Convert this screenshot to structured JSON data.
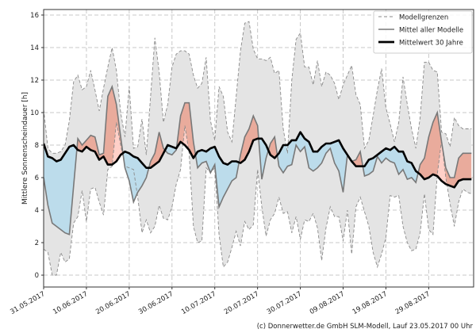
{
  "chart_data": {
    "type": "area",
    "title": "",
    "xlabel": "",
    "ylabel": "Mittlere Sonnenscheindauer [h]",
    "xlim": [
      0,
      100.5
    ],
    "ylim": [
      -0.73,
      16.34
    ],
    "yticks": [
      0,
      2,
      4,
      6,
      8,
      10,
      12,
      14,
      16
    ],
    "xticks": [
      {
        "day": 0,
        "label": "31.05.2017"
      },
      {
        "day": 10,
        "label": "10.06.2017"
      },
      {
        "day": 20,
        "label": "20.06.2017"
      },
      {
        "day": 30,
        "label": "30.06.2017"
      },
      {
        "day": 40,
        "label": "10.07.2017"
      },
      {
        "day": 50,
        "label": "20.07.2017"
      },
      {
        "day": 60,
        "label": "30.07.2017"
      },
      {
        "day": 70,
        "label": "09.08.2017"
      },
      {
        "day": 80,
        "label": "19.08.2017"
      },
      {
        "day": 90,
        "label": "29.08.2017"
      }
    ],
    "grid": true,
    "legend_position": "top-right",
    "legend": [
      "Modellgrenzen",
      "Mittel aller Modelle",
      "Mittelwert 30 Jahre"
    ],
    "series": [
      {
        "name": "Modellgrenzen max",
        "values": [
          10.2,
          7.8,
          7.5,
          7.5,
          7.6,
          8.0,
          9.5,
          11.9,
          12.3,
          11.4,
          11.6,
          12.6,
          11.4,
          10.1,
          11.5,
          12.8,
          14.0,
          12.6,
          10.0,
          8.5,
          11.6,
          7.8,
          7.9,
          9.6,
          7.4,
          11.0,
          14.6,
          12.5,
          9.4,
          10.5,
          12.8,
          13.6,
          13.8,
          13.8,
          13.6,
          12.3,
          11.5,
          11.8,
          13.4,
          9.5,
          8.3,
          11.6,
          11.0,
          8.8,
          8.2,
          11.0,
          13.8,
          15.5,
          15.6,
          13.9,
          13.3,
          13.3,
          13.2,
          13.4,
          12.4,
          12.6,
          9.0,
          7.5,
          12.0,
          14.5,
          14.9,
          12.8,
          12.8,
          11.7,
          13.2,
          11.6,
          12.5,
          12.3,
          11.8,
          10.8,
          11.7,
          12.3,
          12.9,
          11.1,
          10.5,
          7.8,
          8.3,
          9.8,
          11.4,
          12.7,
          10.3,
          9.3,
          8.2,
          9.4,
          12.2,
          10.5,
          9.0,
          7.8,
          9.7,
          13.1,
          13.1,
          12.6,
          12.5,
          8.8,
          8.7,
          7.9,
          9.7,
          9.2,
          9.0,
          9.0,
          9.0
        ]
      },
      {
        "name": "Modellgrenzen min",
        "values": [
          1.6,
          1.4,
          0.0,
          0.0,
          1.4,
          0.8,
          1.0,
          3.2,
          3.6,
          5.2,
          3.3,
          5.3,
          5.4,
          4.5,
          3.7,
          6.5,
          6.7,
          9.4,
          8.0,
          6.7,
          6.6,
          6.5,
          4.8,
          2.6,
          3.4,
          2.6,
          3.0,
          4.3,
          3.5,
          3.4,
          4.2,
          5.6,
          6.5,
          9.2,
          7.5,
          3.0,
          2.0,
          2.1,
          6.6,
          6.3,
          6.6,
          2.5,
          0.5,
          0.8,
          1.7,
          2.7,
          1.8,
          3.3,
          2.8,
          3.1,
          6.5,
          4.2,
          2.4,
          3.4,
          3.8,
          4.8,
          3.8,
          3.9,
          2.6,
          3.6,
          2.2,
          3.4,
          3.3,
          3.8,
          2.9,
          0.9,
          2.9,
          4.2,
          3.6,
          3.6,
          2.1,
          4.0,
          1.3,
          4.2,
          4.8,
          3.9,
          3.0,
          1.4,
          0.5,
          1.3,
          2.3,
          4.9,
          4.8,
          4.9,
          3.0,
          2.0,
          1.5,
          1.6,
          2.6,
          5.0,
          2.8,
          2.5,
          6.2,
          8.3,
          6.0,
          4.4,
          3.0,
          4.5,
          5.3,
          5.1,
          5.0
        ]
      },
      {
        "name": "Mittel aller Modelle",
        "values": [
          6.0,
          4.3,
          3.2,
          3.0,
          2.8,
          2.6,
          2.5,
          5.5,
          8.4,
          8.0,
          8.3,
          8.6,
          8.5,
          7.4,
          7.5,
          11.0,
          11.6,
          10.5,
          8.5,
          6.6,
          5.8,
          4.5,
          5.1,
          5.5,
          6.0,
          7.0,
          7.5,
          8.8,
          7.8,
          7.5,
          7.4,
          7.7,
          9.8,
          10.6,
          10.6,
          8.2,
          6.6,
          6.9,
          7.0,
          6.3,
          6.8,
          4.2,
          4.8,
          5.3,
          5.8,
          6.0,
          7.4,
          8.5,
          9.0,
          9.8,
          9.2,
          5.9,
          7.2,
          8.1,
          8.5,
          6.7,
          6.3,
          6.7,
          6.8,
          8.0,
          7.6,
          7.9,
          6.6,
          6.4,
          6.6,
          6.9,
          7.5,
          7.8,
          6.9,
          6.4,
          5.1,
          7.4,
          7.0,
          7.1,
          7.6,
          6.1,
          6.2,
          6.4,
          7.3,
          6.9,
          7.2,
          7.0,
          6.9,
          6.2,
          6.5,
          5.9,
          6.0,
          5.7,
          6.8,
          7.2,
          8.5,
          9.4,
          10.0,
          8.2,
          6.6,
          6.0,
          6.0,
          7.2,
          7.5,
          7.5,
          7.5
        ]
      },
      {
        "name": "Mittelwert 30 Jahre",
        "values": [
          8.1,
          7.3,
          7.2,
          7.0,
          7.1,
          7.5,
          7.9,
          8.0,
          7.7,
          7.6,
          7.9,
          7.7,
          7.6,
          7.1,
          7.3,
          6.8,
          6.8,
          7.0,
          7.4,
          7.6,
          7.5,
          7.3,
          7.2,
          6.9,
          6.6,
          6.6,
          6.8,
          7.0,
          7.5,
          8.0,
          7.9,
          7.8,
          8.2,
          8.0,
          7.7,
          7.2,
          7.6,
          7.7,
          7.6,
          7.8,
          7.9,
          7.3,
          6.9,
          6.8,
          7.0,
          7.0,
          6.9,
          7.1,
          7.6,
          8.3,
          8.4,
          8.4,
          8.0,
          7.4,
          7.2,
          7.5,
          8.0,
          8.0,
          8.3,
          8.3,
          8.8,
          8.4,
          8.2,
          7.6,
          7.6,
          7.9,
          8.1,
          8.1,
          8.2,
          8.3,
          7.8,
          7.4,
          7.0,
          6.7,
          6.7,
          6.7,
          7.1,
          7.2,
          7.4,
          7.6,
          7.8,
          7.7,
          7.9,
          7.6,
          7.6,
          7.0,
          6.9,
          6.4,
          6.2,
          5.9,
          6.0,
          6.2,
          6.1,
          5.8,
          5.6,
          5.5,
          5.4,
          5.8,
          5.9,
          5.9,
          5.9
        ]
      }
    ],
    "colors": {
      "band": "#e4e4e4",
      "above": "#e9ab9c",
      "above_light": "#ffd0c8",
      "below": "#bcdceb",
      "below_light": "#d3effc",
      "bound_line": "#8a8a8a",
      "model_line": "#787878",
      "climate_line": "#000000"
    }
  },
  "footer": "(c) Donnerwetter.de GmbH SLM-Modell, Lauf 23.05.2017 00 Uhr"
}
